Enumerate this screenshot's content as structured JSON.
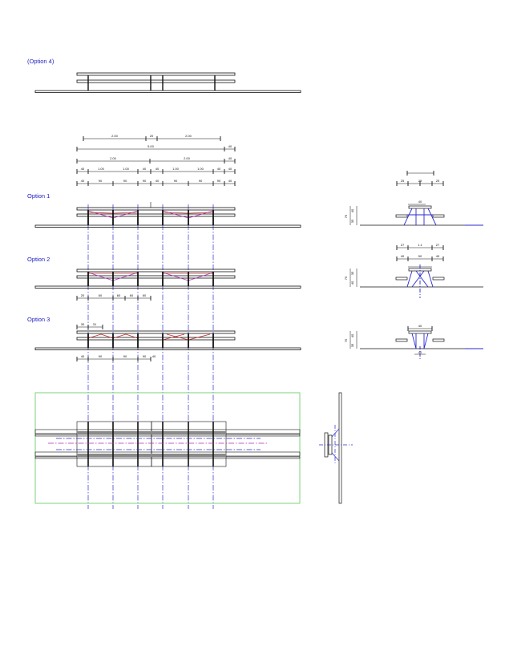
{
  "labels": {
    "option4": "(Option 4)",
    "option1": "Option 1",
    "option2": "Option 2",
    "option3": "Option 3"
  },
  "dimensions": {
    "top_row1": [
      "2.00",
      "20",
      "2.00"
    ],
    "top_row2": [
      "5.00",
      "40"
    ],
    "top_row3": [
      "2.00",
      "2.00",
      "40"
    ],
    "top_row4": [
      "40",
      "1.00",
      "1.00",
      "40",
      "40",
      "1.00",
      "1.00",
      "40",
      "40"
    ],
    "top_row5": [
      "40",
      "90",
      "90",
      "90",
      "40",
      "90",
      "90",
      "90",
      "40"
    ],
    "opt2_below": [
      "20",
      "60",
      "60",
      "60",
      "60"
    ],
    "opt3_above": [
      "30",
      "31"
    ],
    "opt3_below": [
      "40",
      "90",
      "90",
      "90",
      "40"
    ],
    "side1_top": "40",
    "side1_row": [
      "25",
      "29",
      "25"
    ],
    "side1_height": [
      "75",
      "40",
      "35"
    ],
    "side2_top": [
      "27",
      "1.1",
      "27"
    ],
    "side2_row": [
      "40",
      "50",
      "40"
    ],
    "side2_height": [
      "75",
      "35",
      "40"
    ],
    "side3_top": "40",
    "side3_height": [
      "75",
      "40",
      "35"
    ],
    "side3_base": "40"
  },
  "colors": {
    "line": "#111111",
    "axis": "#2a2ad0",
    "brace_red": "#c03030",
    "brace_magenta": "#b030b0",
    "frame_green": "#7ad67a",
    "label": "#2020c0"
  }
}
